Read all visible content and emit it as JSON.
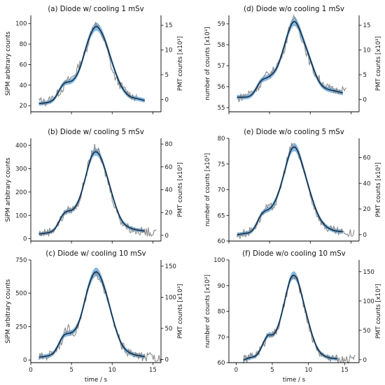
{
  "figure": {
    "xlabel": "time / s"
  },
  "chart_data": [
    {
      "type": "line",
      "title": "(a) Diode w/ cooling 1 mSv",
      "ylabel": "SiPM arbitrary counts",
      "ylabel_right": "PMT counts [x10³]",
      "ylim": [
        14,
        108
      ],
      "yticks": [
        20,
        40,
        60,
        80,
        100
      ],
      "y2lim": [
        -2.5,
        17
      ],
      "y2ticks": [
        0,
        5,
        10,
        15
      ],
      "xlim": [
        0,
        16
      ],
      "xticks": [
        0,
        5,
        10,
        15
      ],
      "x": [
        1,
        2,
        3,
        4,
        4.5,
        5,
        6,
        7,
        7.5,
        8,
        8.5,
        9,
        10,
        11,
        12,
        13,
        14
      ],
      "series": [
        {
          "role": "fit",
          "values": [
            22,
            23,
            28,
            41,
            43,
            44,
            56,
            82,
            92,
            97,
            94,
            86,
            62,
            41,
            30,
            27,
            25
          ]
        },
        {
          "role": "measured",
          "values": [
            25,
            24,
            30,
            38,
            44,
            47,
            60,
            80,
            94,
            99,
            92,
            84,
            55,
            40,
            32,
            27,
            24
          ]
        }
      ],
      "band_halfwidth": 3,
      "pmt_range": [
        1,
        13
      ]
    },
    {
      "type": "line",
      "title": "(d) Diode w/o cooling 1 mSv",
      "ylabel": "number of counts [x10³]",
      "ylabel_right": "PMT counts [x10³]",
      "ylim": [
        54.8,
        59.4
      ],
      "yticks": [
        55,
        56,
        57,
        58,
        59
      ],
      "y2lim": [
        -2.5,
        17
      ],
      "y2ticks": [
        0,
        5,
        10,
        15
      ],
      "xlim": [
        0,
        16
      ],
      "xticks": [
        0,
        5,
        10,
        15
      ],
      "x": [
        1,
        2,
        3,
        4,
        4.5,
        5,
        6,
        7,
        7.5,
        8,
        8.5,
        9,
        10,
        11,
        12,
        13,
        14
      ],
      "series": [
        {
          "role": "fit",
          "values": [
            55.5,
            55.5,
            55.7,
            56.3,
            56.4,
            56.5,
            57.0,
            58.2,
            58.8,
            59.1,
            58.9,
            58.4,
            57.3,
            56.3,
            55.9,
            55.8,
            55.7
          ]
        },
        {
          "role": "measured",
          "values": [
            55.4,
            55.6,
            55.8,
            56.2,
            56.5,
            56.6,
            57.1,
            58.1,
            58.9,
            59.2,
            58.8,
            58.3,
            57.1,
            56.4,
            56.0,
            55.8,
            55.9
          ]
        }
      ],
      "band_halfwidth": 0.15,
      "pmt_range": [
        1,
        14.5
      ]
    },
    {
      "type": "line",
      "title": "(b) Diode w/ cooling 5 mSv",
      "ylabel": "SiPM arbitrary counts",
      "ylabel_right": "PMT counts [x10³]",
      "ylim": [
        -10,
        430
      ],
      "yticks": [
        0,
        100,
        200,
        300,
        400
      ],
      "y2lim": [
        -5,
        85
      ],
      "y2ticks": [
        0,
        20,
        40,
        60,
        80
      ],
      "xlim": [
        0,
        16
      ],
      "xticks": [
        0,
        5,
        10,
        15
      ],
      "x": [
        1,
        2,
        3,
        4,
        4.5,
        5,
        6,
        7,
        7.5,
        8,
        8.5,
        9,
        10,
        11,
        12,
        13,
        14
      ],
      "series": [
        {
          "role": "fit",
          "values": [
            20,
            25,
            45,
            105,
            118,
            122,
            175,
            300,
            355,
            372,
            355,
            310,
            190,
            90,
            50,
            38,
            33
          ]
        },
        {
          "role": "measured",
          "values": [
            22,
            28,
            48,
            100,
            120,
            125,
            170,
            305,
            360,
            390,
            350,
            300,
            180,
            85,
            48,
            35,
            30
          ]
        }
      ],
      "band_halfwidth": 12,
      "pmt_range": [
        1,
        15.5
      ]
    },
    {
      "type": "line",
      "title": "(e) Diode w/o cooling 5 mSv",
      "ylabel": "number of counts [x10³]",
      "ylabel_right": "PMT counts [x10³]",
      "ylim": [
        60,
        80
      ],
      "yticks": [
        60,
        65,
        70,
        75,
        80
      ],
      "y2lim": [
        -5,
        75
      ],
      "y2ticks": [
        0,
        20,
        40,
        60
      ],
      "xlim": [
        0,
        16
      ],
      "xticks": [
        0,
        5,
        10,
        15
      ],
      "x": [
        1,
        2,
        3,
        4,
        4.5,
        5,
        6,
        7,
        7.5,
        8,
        8.5,
        9,
        10,
        11,
        12,
        13,
        14
      ],
      "series": [
        {
          "role": "fit",
          "values": [
            61.2,
            61.5,
            62.3,
            65.2,
            65.9,
            66.3,
            69.0,
            74.5,
            77.2,
            78.3,
            77.4,
            75.0,
            69.5,
            65.0,
            62.8,
            62.0,
            61.8
          ]
        },
        {
          "role": "measured",
          "values": [
            61.0,
            61.6,
            62.5,
            65.0,
            66.2,
            66.4,
            68.5,
            74.8,
            77.6,
            78.5,
            77.0,
            74.6,
            69.0,
            64.8,
            62.6,
            61.9,
            61.5
          ]
        }
      ],
      "band_halfwidth": 0.6,
      "pmt_range": [
        1,
        15.5
      ]
    },
    {
      "type": "line",
      "title": "(c) Diode w/ cooling 10 mSv",
      "ylabel": "SiPM arbitrary counts",
      "ylabel_right": "PMT counts [x10³]",
      "ylim": [
        -20,
        750
      ],
      "yticks": [
        0,
        250,
        500,
        750
      ],
      "y2lim": [
        -5,
        160
      ],
      "y2ticks": [
        0,
        50,
        100,
        150
      ],
      "xlim": [
        0,
        16
      ],
      "xticks": [
        0,
        5,
        10,
        15
      ],
      "x": [
        1,
        2,
        3,
        4,
        4.5,
        5,
        6,
        7,
        7.5,
        8,
        8.5,
        9,
        10,
        11,
        12,
        13,
        14
      ],
      "series": [
        {
          "role": "fit",
          "values": [
            20,
            30,
            70,
            180,
            198,
            205,
            300,
            530,
            620,
            660,
            630,
            550,
            330,
            140,
            60,
            35,
            25
          ]
        },
        {
          "role": "measured",
          "values": [
            22,
            32,
            75,
            175,
            230,
            210,
            290,
            520,
            610,
            640,
            620,
            540,
            320,
            135,
            55,
            32,
            22
          ]
        }
      ],
      "band_halfwidth": 25,
      "pmt_range": [
        1,
        16
      ]
    },
    {
      "type": "line",
      "title": "(f) Diode w/o cooling 10 mSv",
      "ylabel": "number of counts [x10³]",
      "ylabel_right": "PMT counts [x10³]",
      "ylim": [
        60,
        100
      ],
      "yticks": [
        60,
        70,
        80,
        90,
        100
      ],
      "y2lim": [
        -5,
        170
      ],
      "y2ticks": [
        0,
        50,
        100,
        150
      ],
      "xlim": [
        -1,
        17
      ],
      "xticks": [
        0,
        5,
        10,
        15
      ],
      "x": [
        1,
        2,
        3,
        4,
        4.5,
        5,
        6,
        7,
        7.5,
        8,
        8.5,
        9,
        10,
        11,
        12,
        13,
        14
      ],
      "series": [
        {
          "role": "fit",
          "values": [
            61.0,
            62.0,
            63.5,
            69.0,
            70.8,
            70.8,
            76.0,
            87.5,
            92.5,
            94.0,
            92.0,
            87.0,
            76.0,
            67.0,
            63.0,
            61.8,
            61.5
          ]
        },
        {
          "role": "measured",
          "values": [
            61.2,
            62.2,
            64.0,
            68.5,
            71.5,
            71.0,
            75.5,
            87.0,
            92.0,
            93.5,
            91.5,
            86.5,
            75.0,
            66.5,
            63.0,
            62.0,
            61.5
          ]
        }
      ],
      "band_halfwidth": 1.2,
      "pmt_range": [
        1,
        16.5
      ]
    }
  ]
}
